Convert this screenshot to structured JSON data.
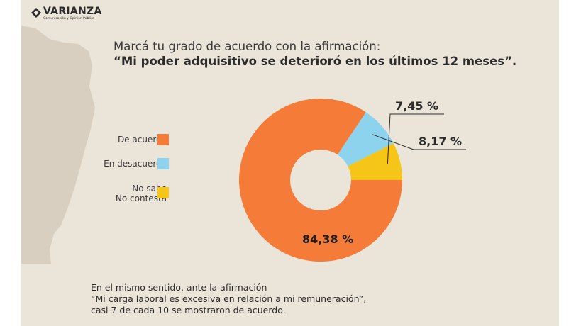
{
  "brand": {
    "name": "VARIANZA",
    "tagline": "Comunicación y Opinión Pública"
  },
  "question": {
    "intro": "Marcá tu grado de acuerdo con la afirmación:",
    "statement": "“Mi poder adquisitivo se deterioró en los últimos 12 meses”."
  },
  "legend": {
    "items": [
      {
        "lines": [
          "De acuerdo"
        ],
        "color": "#f57c38"
      },
      {
        "lines": [
          "En desacuerdo"
        ],
        "color": "#8dd3ee"
      },
      {
        "lines": [
          "No sabe",
          "No contesta"
        ],
        "color": "#f5c518"
      }
    ]
  },
  "chart_data": {
    "type": "pie",
    "donut": true,
    "title": "",
    "categories": [
      "De acuerdo",
      "En desacuerdo",
      "No sabe / No contesta"
    ],
    "values": [
      84.38,
      8.17,
      7.45
    ],
    "labels": [
      "84,38 %",
      "8,17 %",
      "7,45 %"
    ],
    "colors": [
      "#f57c38",
      "#8dd3ee",
      "#f5c518"
    ],
    "legend_position": "left"
  },
  "footnote": {
    "line1": "En el mismo sentido, ante la afirmación",
    "line2": "“Mi carga laboral es excesiva en relación a mi remuneración”,",
    "line3": "casi 7 de cada 10 se mostraron de acuerdo."
  },
  "colors": {
    "background": "#ebe5d9",
    "map_shape": "#d9cfc0",
    "text": "#2b2b2b"
  }
}
